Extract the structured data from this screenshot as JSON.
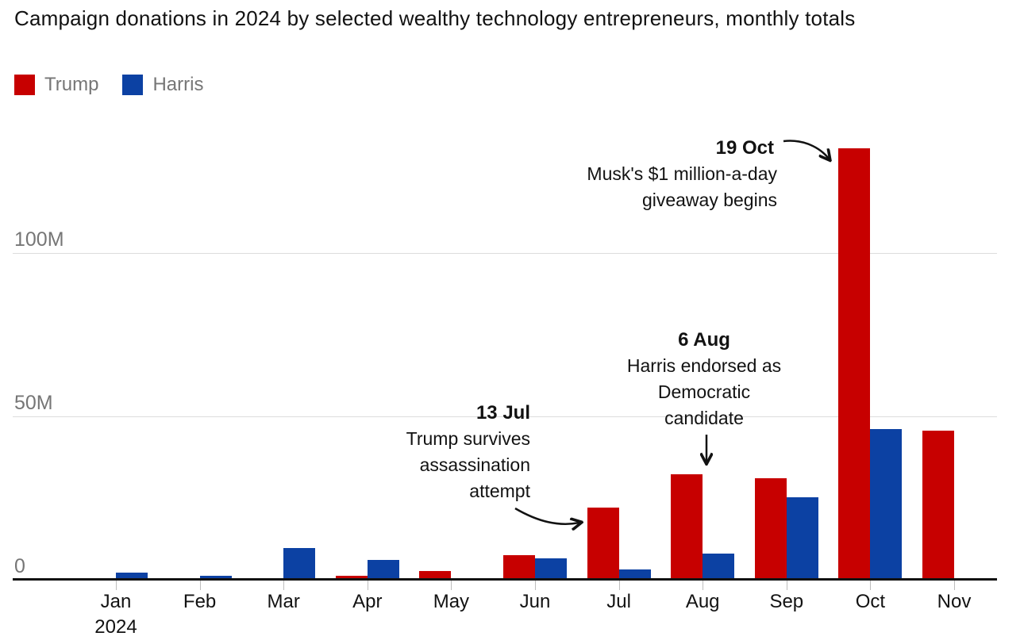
{
  "title": "Campaign donations in 2024 by selected wealthy technology entrepreneurs, monthly totals",
  "legend": {
    "items": [
      {
        "label": "Trump",
        "color": "#c70000"
      },
      {
        "label": "Harris",
        "color": "#0c41a3"
      }
    ]
  },
  "y_axis": {
    "tick_labels": [
      "100M",
      "50M",
      "0"
    ]
  },
  "x_axis": {
    "year_label": "2024"
  },
  "chart_data": {
    "type": "bar",
    "title": "Campaign donations in 2024 by selected wealthy technology entrepreneurs, monthly totals",
    "categories": [
      "Jan",
      "Feb",
      "Mar",
      "Apr",
      "May",
      "Jun",
      "Jul",
      "Aug",
      "Sep",
      "Oct",
      "Nov"
    ],
    "series": [
      {
        "name": "Trump",
        "color": "#c70000",
        "values": [
          0,
          0,
          0,
          0.9,
          2.4,
          7.4,
          22,
          32,
          31,
          132,
          45.5
        ]
      },
      {
        "name": "Harris",
        "color": "#0c41a3",
        "values": [
          2,
          1,
          9.5,
          5.8,
          0,
          6.4,
          2.8,
          7.8,
          25,
          46,
          0
        ]
      }
    ],
    "xlabel": "",
    "ylabel": "",
    "ylim": [
      0,
      137
    ],
    "y_ticks": [
      0,
      50,
      100
    ],
    "y_tick_labels": [
      "0",
      "50M",
      "100M"
    ],
    "grid": "horizontal",
    "legend_position": "top-left",
    "units": "US dollars (M = million)",
    "annotations": [
      {
        "date": "13 Jul",
        "text": "Trump survives assassination attempt",
        "points_to": "Jul Trump bar"
      },
      {
        "date": "6 Aug",
        "text": "Harris endorsed as Democratic candidate",
        "points_to": "Aug Trump bar"
      },
      {
        "date": "19 Oct",
        "text": "Musk's $1 million-a-day giveaway begins",
        "points_to": "Oct Trump bar"
      }
    ]
  },
  "annotations": {
    "jul": {
      "date": "13 Jul",
      "line1": "Trump survives",
      "line2": "assassination",
      "line3": "attempt"
    },
    "aug": {
      "date": "6 Aug",
      "line1": "Harris endorsed as",
      "line2": "Democratic",
      "line3": "candidate"
    },
    "oct": {
      "date": "19 Oct",
      "line1": "Musk's $1 million-a-day",
      "line2": "giveaway begins"
    }
  }
}
